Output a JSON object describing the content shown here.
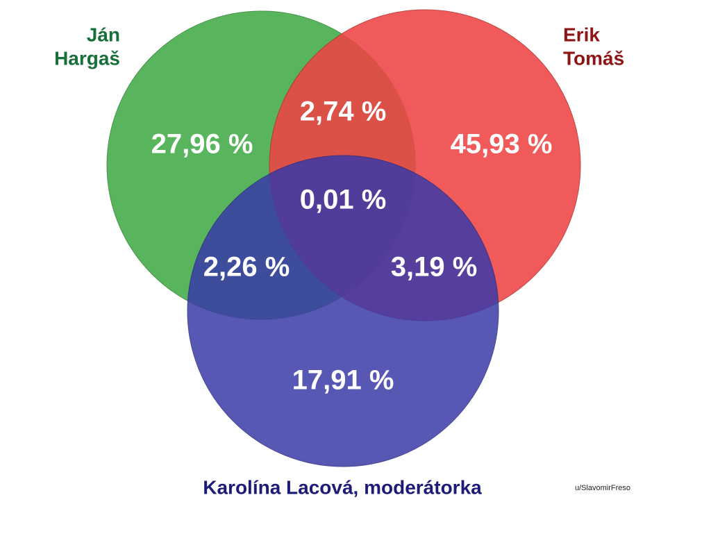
{
  "sets": [
    {
      "label_lines": [
        "Ján",
        "Hargaš"
      ]
    },
    {
      "label_lines": [
        "Erik",
        "Tomáš"
      ]
    },
    {
      "label_lines": [
        "Karolína Lacová, moderátorka"
      ]
    }
  ],
  "regions": [
    {
      "label": "27,96 %"
    },
    {
      "label": "45,93 %"
    },
    {
      "label": "17,91 %"
    },
    {
      "label": "2,74 %"
    },
    {
      "label": "2,26 %"
    },
    {
      "label": "3,19 %"
    },
    {
      "label": "0,01 %"
    }
  ],
  "credit": "u/SlavomirFreso"
}
